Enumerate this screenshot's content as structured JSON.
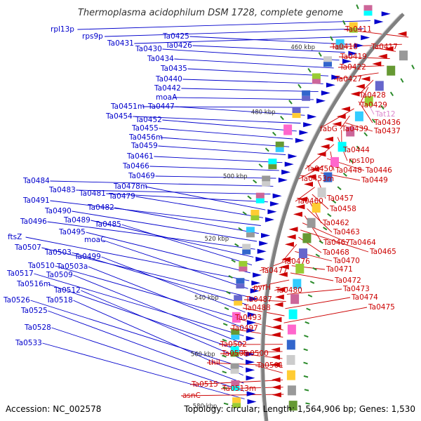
{
  "title": "Thermoplasma acidophilum DSM 1728, complete genome",
  "footer": {
    "accession": "Accession: NC_002578",
    "summary": "Topology: circular; Length: 1,564,906 bp; Genes: 1,530"
  },
  "colors": {
    "forward": "#0000cc",
    "reverse": "#cc0000",
    "rna": "#dd88cc",
    "backbone": "#808080",
    "tick": "#2a8a2a"
  },
  "scale_labels": [
    "460 kbp",
    "480 kbp",
    "500 kbp",
    "520 kbp",
    "540 kbp",
    "560 kbp",
    "580 kbp"
  ],
  "forward_genes": [
    "rpl13p",
    "rps9p",
    "Ta0431",
    "Ta0425",
    "Ta0426",
    "Ta0430",
    "Ta0434",
    "Ta0435",
    "Ta0440",
    "Ta0442",
    "moaA",
    "Ta0451m",
    "Ta0447",
    "Ta0454",
    "Ta0452",
    "Ta0455",
    "Ta0456m",
    "Ta0459",
    "Ta0461",
    "Ta0466",
    "Ta0469",
    "Ta0484",
    "Ta0483",
    "Ta0481",
    "Ta0478m",
    "Ta0479",
    "Ta0491",
    "Ta0482",
    "Ta0490",
    "Ta0496",
    "Ta0489",
    "Ta0485",
    "Ta0495",
    "ftsZ",
    "moaC",
    "Ta0507",
    "Ta0503",
    "Ta0499",
    "Ta0510",
    "Ta0503a",
    "Ta0517",
    "Ta0509",
    "Ta0516m",
    "Ta0512",
    "Ta0526",
    "Ta0518",
    "Ta0525",
    "Ta0528",
    "Ta0533"
  ],
  "reverse_genes": [
    "Ta0411",
    "Ta0418",
    "Ta0417",
    "Ta0419",
    "Ta0422",
    "Ta0427",
    "Ta0428",
    "Ta0429",
    "Tat12",
    "Ta0436",
    "fabG",
    "Ta0439",
    "Ta0437",
    "Ta0444",
    "rps10p",
    "Ta0450",
    "Ta0448",
    "Ta0446",
    "Ta0453m",
    "Ta0449",
    "Ta0457",
    "Ta0460",
    "Ta0458",
    "Ta0462",
    "Ta0463",
    "Ta0467",
    "Ta0464",
    "Ta0465",
    "Ta0468",
    "Ta0476",
    "Ta0470",
    "Ta0477",
    "Ta0471",
    "Ta0472",
    "pyrH",
    "Ta0480",
    "Ta0473",
    "Ta0487",
    "Ta0474",
    "Ta0488",
    "Ta0475",
    "Ta0493",
    "Ta0497",
    "Ta0502",
    "Ta0505",
    "Ta0500",
    "thiI",
    "Ta0501",
    "Ta0515",
    "Ta0513m",
    "asnC"
  ]
}
